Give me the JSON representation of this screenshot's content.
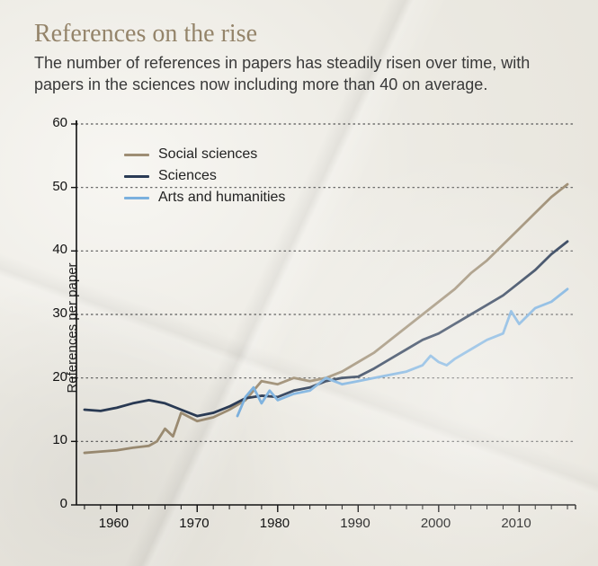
{
  "title": "References on the rise",
  "subtitle": "The number of references in papers has steadily risen over time, with papers in the sciences now including more than 40 on average.",
  "ylabel": "References per paper",
  "chart": {
    "type": "line",
    "background_color": "transparent",
    "grid_color": "#555555",
    "axis_color": "#111111",
    "xlim": [
      1955,
      2017
    ],
    "ylim": [
      0,
      60
    ],
    "ytick_step": 10,
    "xticks": [
      1960,
      1970,
      1980,
      1990,
      2000,
      2010
    ],
    "yticks": [
      0,
      10,
      20,
      30,
      40,
      50,
      60
    ],
    "axis_fontsize": 15,
    "title_fontsize": 28,
    "subtitle_fontsize": 18,
    "title_color": "#94846a",
    "subtitle_color": "#3a3a3a",
    "line_width": 2.8,
    "legend": {
      "position": "upper-left-inside",
      "fontsize": 16
    },
    "series": [
      {
        "label": "Social sciences",
        "color": "#9e8e74",
        "x": [
          1956,
          1958,
          1960,
          1962,
          1964,
          1965,
          1966,
          1967,
          1968,
          1970,
          1972,
          1974,
          1976,
          1978,
          1980,
          1982,
          1984,
          1986,
          1988,
          1990,
          1992,
          1994,
          1996,
          1998,
          2000,
          2002,
          2004,
          2006,
          2008,
          2010,
          2012,
          2014,
          2015,
          2016
        ],
        "y": [
          8.2,
          8.4,
          8.6,
          9.0,
          9.3,
          10.0,
          12.0,
          10.8,
          14.5,
          13.2,
          13.8,
          15.0,
          16.5,
          19.5,
          19.0,
          20.0,
          19.5,
          20.0,
          21.0,
          22.5,
          24.0,
          26.0,
          28.0,
          30.0,
          32.0,
          34.0,
          36.5,
          38.5,
          41.0,
          43.5,
          46.0,
          48.5,
          49.5,
          50.5
        ]
      },
      {
        "label": "Sciences",
        "color": "#2a3b55",
        "x": [
          1956,
          1958,
          1960,
          1962,
          1964,
          1966,
          1968,
          1970,
          1972,
          1974,
          1976,
          1978,
          1980,
          1982,
          1984,
          1986,
          1988,
          1990,
          1992,
          1994,
          1996,
          1998,
          2000,
          2002,
          2004,
          2006,
          2008,
          2010,
          2012,
          2014,
          2016
        ],
        "y": [
          15.0,
          14.8,
          15.3,
          16.0,
          16.5,
          16.0,
          15.0,
          14.0,
          14.5,
          15.5,
          16.8,
          17.2,
          17.0,
          18.0,
          18.5,
          19.5,
          20.0,
          20.2,
          21.5,
          23.0,
          24.5,
          26.0,
          27.0,
          28.5,
          30.0,
          31.5,
          33.0,
          35.0,
          37.0,
          39.5,
          41.5
        ]
      },
      {
        "label": "Arts and humanities",
        "color": "#7ab0de",
        "x": [
          1975,
          1976,
          1977,
          1978,
          1979,
          1980,
          1982,
          1984,
          1986,
          1988,
          1990,
          1992,
          1994,
          1996,
          1998,
          1999,
          2000,
          2001,
          2002,
          2004,
          2006,
          2008,
          2009,
          2010,
          2012,
          2014,
          2016
        ],
        "y": [
          14.0,
          17.0,
          18.5,
          16.0,
          18.0,
          16.5,
          17.5,
          18.0,
          20.0,
          19.0,
          19.5,
          20.0,
          20.5,
          21.0,
          22.0,
          23.5,
          22.5,
          22.0,
          23.0,
          24.5,
          26.0,
          27.0,
          30.5,
          28.5,
          31.0,
          32.0,
          34.0
        ]
      }
    ]
  }
}
